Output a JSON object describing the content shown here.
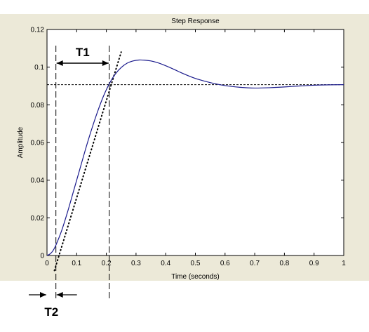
{
  "chart_data": {
    "type": "line",
    "title": "Step Response",
    "xlabel": "Time (seconds)",
    "ylabel": "Amplitude",
    "xlim": [
      0,
      1
    ],
    "ylim": [
      0,
      0.12
    ],
    "xticks": [
      0,
      0.1,
      0.2,
      0.3,
      0.4,
      0.5,
      0.6,
      0.7,
      0.8,
      0.9,
      1
    ],
    "xtick_labels": [
      "0",
      "0.1",
      "0.2",
      "0.3",
      "0.4",
      "0.5",
      "0.6",
      "0.7",
      "0.8",
      "0.9",
      "1"
    ],
    "yticks": [
      0,
      0.02,
      0.04,
      0.06,
      0.08,
      0.1,
      0.12
    ],
    "ytick_labels": [
      "0",
      "0.02",
      "0.04",
      "0.06",
      "0.08",
      "0.1",
      "0.12"
    ],
    "grid": false,
    "colors": {
      "response": "#1a1a8c",
      "annotation": "#000000",
      "frame": "#000000",
      "background": "#ece9d8"
    },
    "series": [
      {
        "x": [
          0,
          0.01,
          0.02,
          0.03,
          0.05,
          0.07,
          0.09,
          0.11,
          0.13,
          0.15,
          0.17,
          0.19,
          0.21,
          0.23,
          0.25,
          0.27,
          0.29,
          0.31,
          0.33,
          0.35,
          0.37,
          0.39,
          0.42,
          0.45,
          0.48,
          0.51,
          0.55,
          0.6,
          0.65,
          0.7,
          0.75,
          0.8,
          0.85,
          0.9,
          0.95,
          1.0
        ],
        "y": [
          0,
          0.0008,
          0.0025,
          0.0055,
          0.0135,
          0.0235,
          0.0345,
          0.0455,
          0.0565,
          0.0668,
          0.0762,
          0.0845,
          0.0912,
          0.0963,
          0.0998,
          0.1021,
          0.1033,
          0.1038,
          0.1037,
          0.1033,
          0.1025,
          0.1014,
          0.0994,
          0.0972,
          0.0952,
          0.0935,
          0.0918,
          0.0902,
          0.0893,
          0.0889,
          0.0891,
          0.0895,
          0.09,
          0.0904,
          0.0906,
          0.0907
        ]
      }
    ],
    "reference_lines": [
      {
        "kind": "horizontal",
        "y": 0.0907,
        "style": "dashed"
      },
      {
        "kind": "vertical",
        "x": 0.03,
        "style": "dashed"
      },
      {
        "kind": "vertical",
        "x": 0.21,
        "style": "dashed"
      },
      {
        "kind": "tangent",
        "x": [
          0.025,
          0.25
        ],
        "y": [
          -0.008,
          0.108
        ],
        "style": "dotted"
      }
    ],
    "annotations": [
      {
        "text": "T1",
        "span_x": [
          0.03,
          0.21
        ]
      },
      {
        "text": "T2",
        "span_x": [
          0,
          0.03
        ]
      }
    ]
  }
}
